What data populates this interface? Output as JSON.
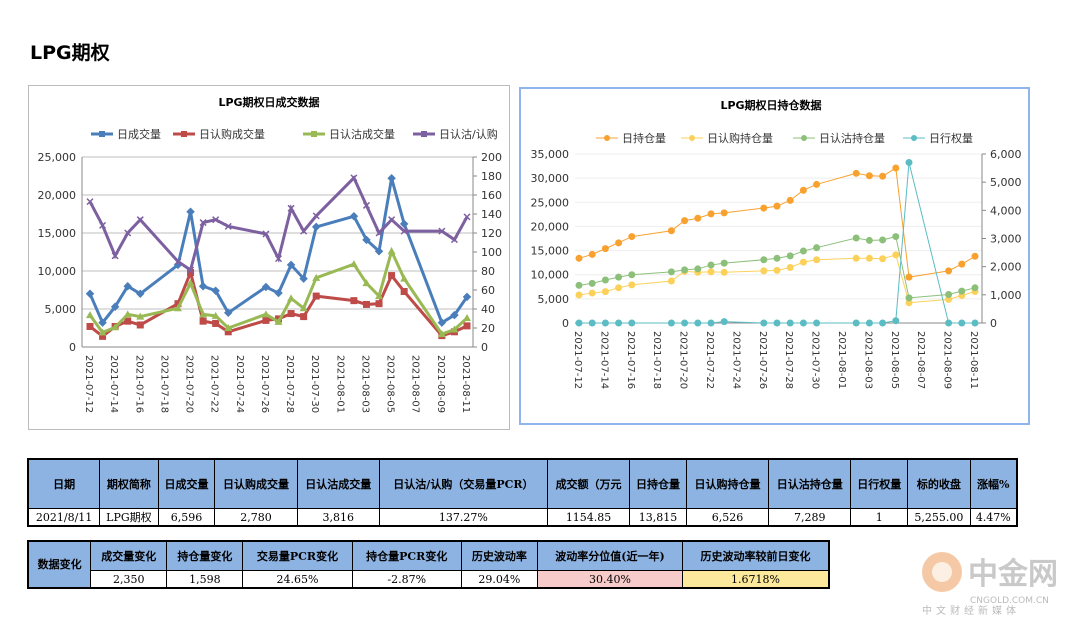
{
  "page_title": "LPG期权",
  "chart_data": [
    {
      "type": "line",
      "title": "LPG期权日成交数据",
      "x": [
        "2021-07-12",
        "2021-07-13",
        "2021-07-14",
        "2021-07-15",
        "2021-07-16",
        "2021-07-19",
        "2021-07-20",
        "2021-07-21",
        "2021-07-22",
        "2021-07-23",
        "2021-07-26",
        "2021-07-27",
        "2021-07-28",
        "2021-07-29",
        "2021-07-30",
        "2021-08-02",
        "2021-08-03",
        "2021-08-04",
        "2021-08-05",
        "2021-08-06",
        "2021-08-09",
        "2021-08-10",
        "2021-08-11"
      ],
      "xticks": [
        "2021-07-12",
        "2021-07-14",
        "2021-07-16",
        "2021-07-18",
        "2021-07-20",
        "2021-07-22",
        "2021-07-24",
        "2021-07-26",
        "2021-07-28",
        "2021-07-30",
        "2021-08-01",
        "2021-08-03",
        "2021-08-05",
        "2021-08-07",
        "2021-08-09",
        "2021-08-11"
      ],
      "ylim": [
        0,
        25000
      ],
      "yticks": [
        "0",
        "5,000",
        "10,000",
        "15,000",
        "20,000",
        "25,000"
      ],
      "y2lim": [
        0,
        200
      ],
      "y2ticks": [
        "0",
        "20",
        "40",
        "60",
        "80",
        "100",
        "120",
        "140",
        "160",
        "180",
        "200"
      ],
      "legend_position": "top",
      "grid": true,
      "series": [
        {
          "name": "日成交量",
          "axis": "left",
          "color": "#4a7ebb",
          "marker": "diamond",
          "values": [
            7000,
            3200,
            5300,
            8000,
            7000,
            10800,
            17800,
            8000,
            7400,
            4500,
            7900,
            7100,
            10800,
            9000,
            15800,
            17200,
            14100,
            12600,
            22200,
            16200,
            3200,
            4200,
            6596
          ]
        },
        {
          "name": "日认购成交量",
          "axis": "left",
          "color": "#be4b48",
          "marker": "square",
          "values": [
            2700,
            1400,
            2700,
            3400,
            2900,
            5700,
            9800,
            3400,
            3100,
            2000,
            3500,
            3700,
            4400,
            4000,
            6700,
            6100,
            5600,
            5700,
            9400,
            7300,
            1500,
            2000,
            2780
          ]
        },
        {
          "name": "日认沽成交量",
          "axis": "left",
          "color": "#98b954",
          "marker": "triangle",
          "values": [
            4200,
            1900,
            2600,
            4300,
            4000,
            5100,
            8400,
            4300,
            4100,
            2500,
            4300,
            3300,
            6400,
            5100,
            9100,
            10900,
            8400,
            6700,
            12600,
            9000,
            1700,
            2300,
            3816
          ]
        },
        {
          "name": "日认沽/认购",
          "axis": "right",
          "color": "#7d60a0",
          "marker": "x",
          "values": [
            153,
            128,
            96,
            120,
            134,
            90,
            81,
            131,
            134,
            127,
            119,
            93,
            146,
            122,
            138,
            178,
            149,
            120,
            134,
            122,
            122,
            113,
            137
          ]
        }
      ]
    },
    {
      "type": "line",
      "title": "LPG期权日持仓数据",
      "x": [
        "2021-07-12",
        "2021-07-13",
        "2021-07-14",
        "2021-07-15",
        "2021-07-16",
        "2021-07-19",
        "2021-07-20",
        "2021-07-21",
        "2021-07-22",
        "2021-07-23",
        "2021-07-26",
        "2021-07-27",
        "2021-07-28",
        "2021-07-29",
        "2021-07-30",
        "2021-08-02",
        "2021-08-03",
        "2021-08-04",
        "2021-08-05",
        "2021-08-06",
        "2021-08-09",
        "2021-08-10",
        "2021-08-11"
      ],
      "xticks": [
        "2021-07-12",
        "2021-07-14",
        "2021-07-16",
        "2021-07-18",
        "2021-07-20",
        "2021-07-22",
        "2021-07-24",
        "2021-07-26",
        "2021-07-28",
        "2021-07-30",
        "2021-08-01",
        "2021-08-03",
        "2021-08-05",
        "2021-08-07",
        "2021-08-09",
        "2021-08-11"
      ],
      "ylim": [
        0,
        35000
      ],
      "yticks": [
        "0",
        "5,000",
        "10,000",
        "15,000",
        "20,000",
        "25,000",
        "30,000",
        "35,000"
      ],
      "y2lim": [
        0,
        6000
      ],
      "y2ticks": [
        "0",
        "1,000",
        "2,000",
        "3,000",
        "4,000",
        "5,000",
        "6,000"
      ],
      "legend_position": "top",
      "grid": true,
      "series": [
        {
          "name": "日持仓量",
          "axis": "left",
          "color": "#f8a12f",
          "marker": "circle",
          "values": [
            13400,
            14200,
            15400,
            16600,
            17900,
            19100,
            21200,
            21700,
            22600,
            22800,
            23800,
            24200,
            25400,
            27500,
            28700,
            31000,
            30500,
            30400,
            32100,
            9500,
            10800,
            12200,
            13815
          ]
        },
        {
          "name": "日认购持仓量",
          "axis": "left",
          "color": "#fcd15a",
          "marker": "circle",
          "values": [
            5800,
            6200,
            6500,
            7300,
            7900,
            8700,
            10700,
            10500,
            10600,
            10500,
            10800,
            10900,
            11500,
            12600,
            13100,
            13400,
            13400,
            13300,
            14100,
            4200,
            4900,
            5700,
            6526
          ]
        },
        {
          "name": "日认沽持仓量",
          "axis": "left",
          "color": "#8cc07a",
          "marker": "circle",
          "values": [
            7800,
            8200,
            8900,
            9500,
            10000,
            10600,
            11000,
            11200,
            12000,
            12400,
            13100,
            13400,
            13900,
            14900,
            15600,
            17600,
            17100,
            17200,
            17900,
            5200,
            5900,
            6600,
            7289
          ]
        },
        {
          "name": "日行权量",
          "axis": "right",
          "color": "#5bbcc4",
          "marker": "circle",
          "values": [
            0,
            0,
            0,
            0,
            0,
            0,
            0,
            0,
            0,
            50,
            0,
            0,
            0,
            0,
            0,
            0,
            0,
            0,
            80,
            5700,
            0,
            0,
            1
          ]
        }
      ]
    }
  ],
  "table1": {
    "headers": [
      "日期",
      "期权简称",
      "日成交量",
      "日认购成交量",
      "日认沽成交量",
      "日认沽/认购（交易量PCR）",
      "成交额（万元",
      "日持仓量",
      "日认购持仓量",
      "日认沽持仓量",
      "日行权量",
      "标的收盘",
      "涨幅%"
    ],
    "row": [
      "2021/8/11",
      "LPG期权",
      "6,596",
      "2,780",
      "3,816",
      "137.27%",
      "1154.85",
      "13,815",
      "6,526",
      "7,289",
      "1",
      "5,255.00",
      "4.47%"
    ]
  },
  "table2": {
    "lead": "数据变化",
    "headers": [
      "成交量变化",
      "持仓量变化",
      "交易量PCR变化",
      "持仓量PCR变化",
      "历史波动率",
      "波动率分位值(近一年)",
      "历史波动率较前日变化"
    ],
    "row": [
      "2,350",
      "1,598",
      "24.65%",
      "-2.87%",
      "29.04%",
      "30.40%",
      "1.6718%"
    ]
  },
  "logo": {
    "name": "中金网",
    "domain": "CNGOLD.COM.CN",
    "slogan": "中文财经新媒体"
  },
  "colors": {
    "header_bg": "#8db3e2",
    "lead_bg": "#4f81bd",
    "pink": "#f8cbcb",
    "yellow": "#fde99b"
  }
}
